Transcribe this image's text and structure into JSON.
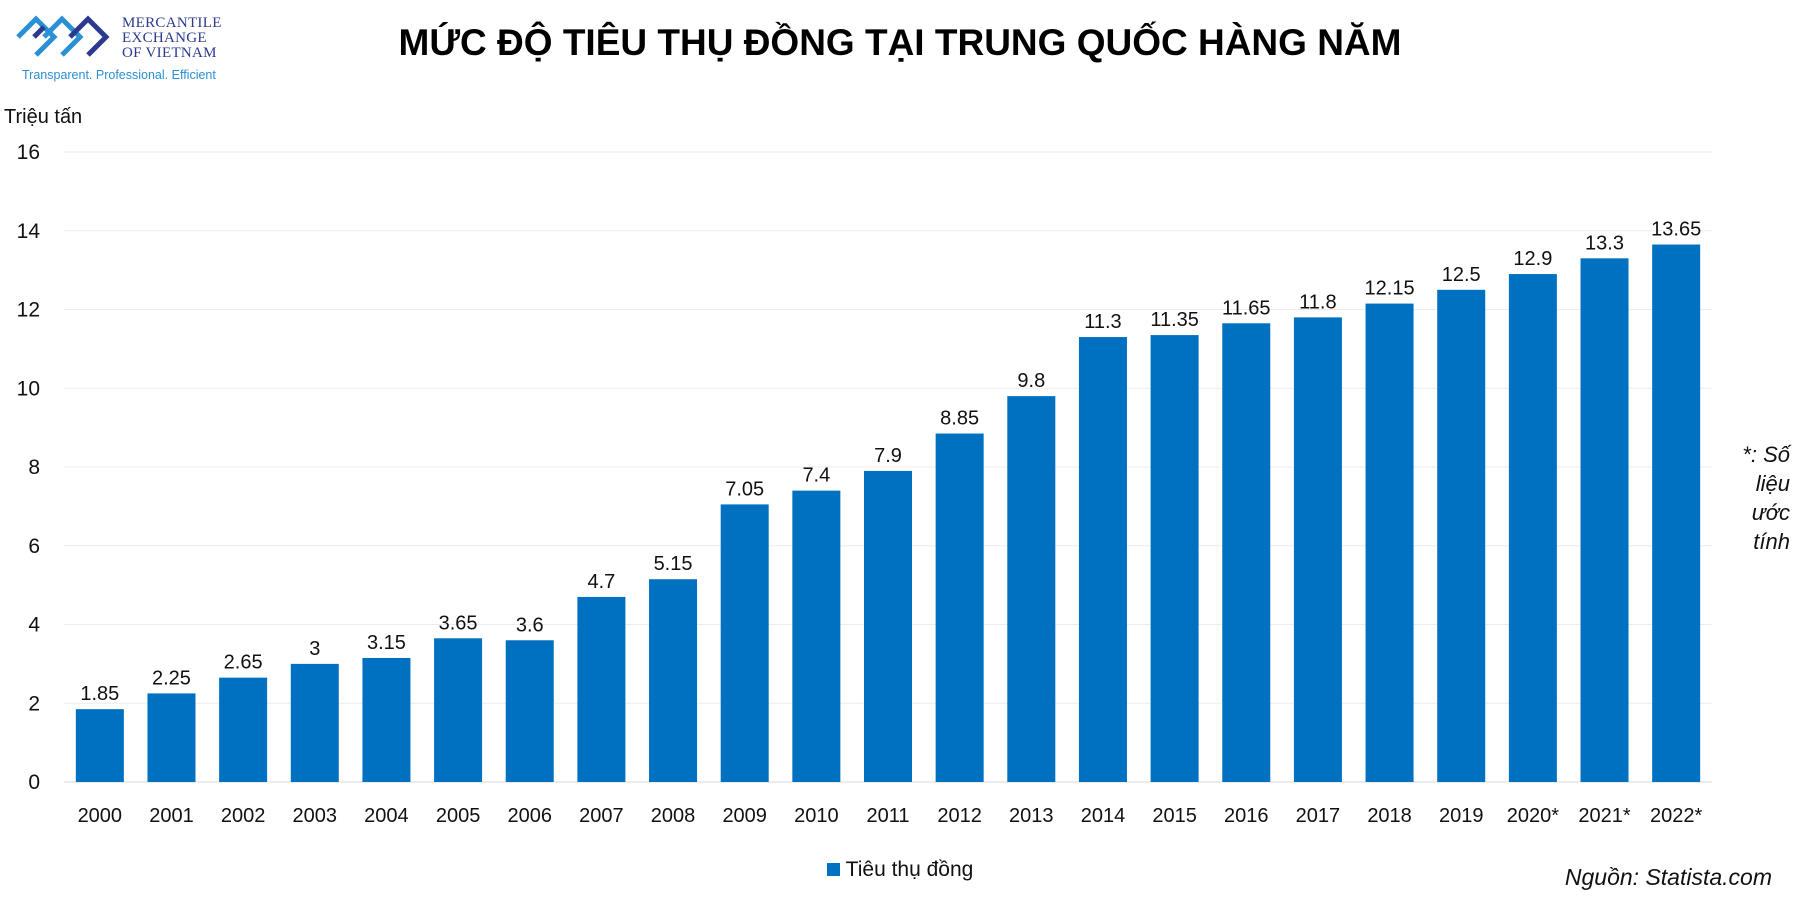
{
  "logo": {
    "lines": [
      "MERCANTILE",
      "EXCHANGE",
      "OF VIETNAM"
    ],
    "tagline": "Transparent. Professional. Efficient",
    "colors": {
      "dark": "#2b3a8f",
      "light": "#2b8fd6"
    }
  },
  "chart_data": {
    "type": "bar",
    "title": "MỨC ĐỘ TIÊU THỤ ĐỒNG TẠI TRUNG QUỐC HÀNG NĂM",
    "unit_label": "Triệu tấn",
    "categories": [
      "2000",
      "2001",
      "2002",
      "2003",
      "2004",
      "2005",
      "2006",
      "2007",
      "2008",
      "2009",
      "2010",
      "2011",
      "2012",
      "2013",
      "2014",
      "2015",
      "2016",
      "2017",
      "2018",
      "2019",
      "2020*",
      "2021*",
      "2022*"
    ],
    "series": [
      {
        "name": "Tiêu thụ đồng",
        "values": [
          1.85,
          2.25,
          2.65,
          3,
          3.15,
          3.65,
          3.6,
          4.7,
          5.15,
          7.05,
          7.4,
          7.9,
          8.85,
          9.8,
          11.3,
          11.35,
          11.65,
          11.8,
          12.15,
          12.5,
          12.9,
          13.3,
          13.65
        ],
        "color": "#0070c0"
      }
    ],
    "ylim": [
      0,
      16
    ],
    "yticks": [
      0,
      2,
      4,
      6,
      8,
      10,
      12,
      14,
      16
    ],
    "grid": true,
    "legend": "bottom-center",
    "note": "*: Số liệu ước tính",
    "source": "Nguồn: Statista.com"
  }
}
